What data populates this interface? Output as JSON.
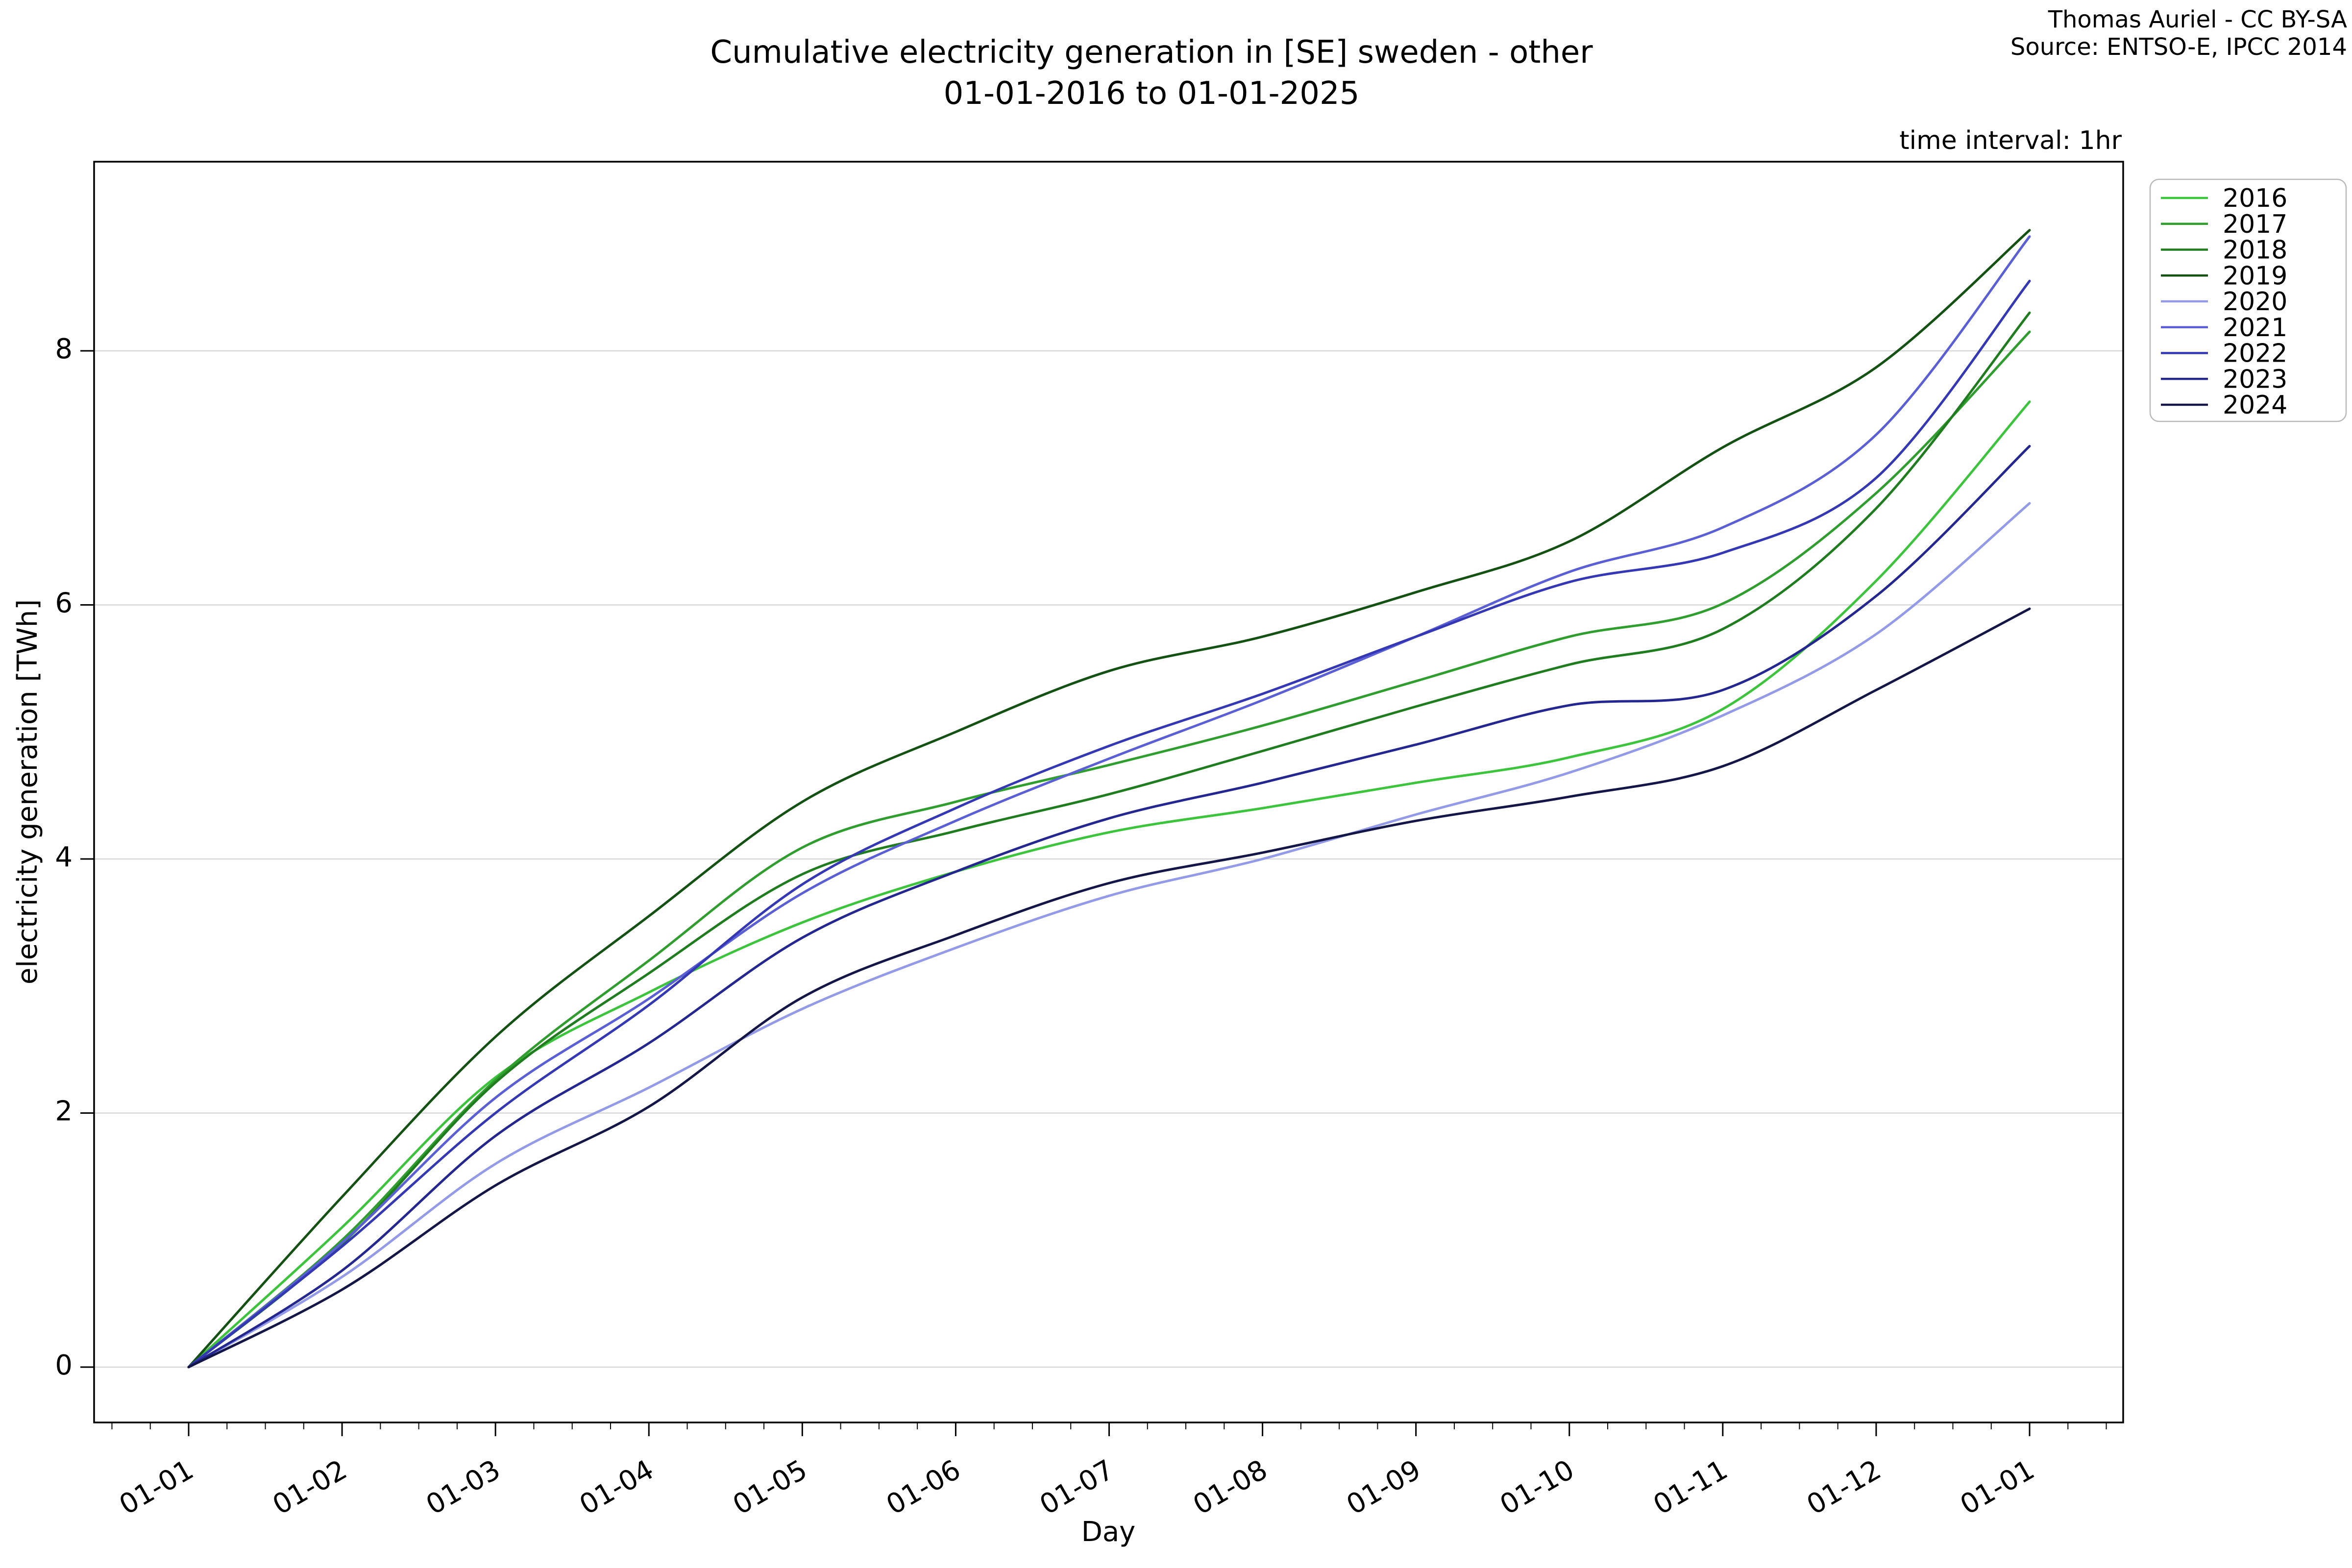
{
  "header": {
    "title_line1": "Cumulative electricity generation in [SE] sweden - other",
    "title_line2": "01-01-2016 to 01-01-2025",
    "attribution_line1": "Thomas Auriel - CC BY-SA",
    "attribution_line2": "Source: ENTSO-E, IPCC 2014",
    "time_interval_label": "time interval: 1hr"
  },
  "chart_data": {
    "type": "line",
    "title": "Cumulative electricity generation in [SE] sweden - other 01-01-2016 to 01-01-2025",
    "xlabel": "Day",
    "ylabel": "electricity generation [TWh]",
    "x_tick_labels": [
      "01-01",
      "01-02",
      "01-03",
      "01-04",
      "01-05",
      "01-06",
      "01-07",
      "01-08",
      "01-09",
      "01-10",
      "01-11",
      "01-12",
      "01-01"
    ],
    "y_ticks": [
      0,
      2,
      4,
      6,
      8
    ],
    "ylim": [
      -0.44,
      9.49
    ],
    "grid": "horizontal",
    "legend_position": "outside-upper-right",
    "categories": [
      "01-01",
      "01-02",
      "01-03",
      "01-04",
      "01-05",
      "01-06",
      "01-07",
      "01-08",
      "01-09",
      "01-10",
      "01-11",
      "01-12",
      "01-01"
    ],
    "series": [
      {
        "name": "2016",
        "color": "#3dc43d",
        "values": [
          0,
          1.1,
          2.28,
          2.95,
          3.5,
          3.9,
          4.21,
          4.4,
          4.6,
          4.8,
          5.18,
          6.19,
          7.6
        ]
      },
      {
        "name": "2017",
        "color": "#2f9e2f",
        "values": [
          0,
          1.0,
          2.26,
          3.2,
          4.09,
          4.45,
          4.74,
          5.05,
          5.4,
          5.75,
          6.01,
          6.88,
          8.15
        ]
      },
      {
        "name": "2018",
        "color": "#1f7d1f",
        "values": [
          0,
          0.97,
          2.24,
          3.1,
          3.88,
          4.22,
          4.51,
          4.85,
          5.2,
          5.53,
          5.81,
          6.76,
          8.3
        ]
      },
      {
        "name": "2019",
        "color": "#145214",
        "values": [
          0,
          1.34,
          2.6,
          3.55,
          4.45,
          5.0,
          5.48,
          5.75,
          6.1,
          6.5,
          7.24,
          7.87,
          8.95
        ]
      },
      {
        "name": "2020",
        "color": "#939ae8",
        "values": [
          0,
          0.71,
          1.6,
          2.2,
          2.82,
          3.3,
          3.71,
          4.0,
          4.35,
          4.68,
          5.13,
          5.77,
          6.8
        ]
      },
      {
        "name": "2021",
        "color": "#5a5fd6",
        "values": [
          0,
          0.98,
          2.12,
          2.9,
          3.73,
          4.3,
          4.79,
          5.25,
          5.75,
          6.26,
          6.61,
          7.34,
          8.9
        ]
      },
      {
        "name": "2022",
        "color": "#3438b4",
        "values": [
          0,
          0.95,
          2.0,
          2.85,
          3.8,
          4.4,
          4.89,
          5.3,
          5.75,
          6.18,
          6.41,
          7.0,
          8.55
        ]
      },
      {
        "name": "2023",
        "color": "#24278f",
        "values": [
          0,
          0.76,
          1.82,
          2.55,
          3.38,
          3.9,
          4.32,
          4.6,
          4.9,
          5.21,
          5.33,
          6.07,
          7.25
        ]
      },
      {
        "name": "2024",
        "color": "#131647",
        "values": [
          0,
          0.61,
          1.43,
          2.05,
          2.91,
          3.4,
          3.81,
          4.05,
          4.3,
          4.49,
          4.73,
          5.33,
          5.97
        ]
      }
    ]
  }
}
